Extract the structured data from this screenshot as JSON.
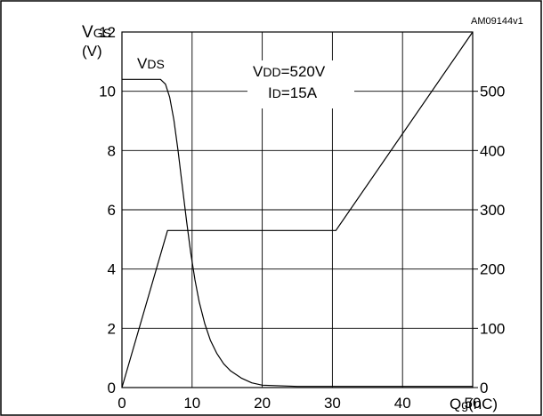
{
  "chart_data": {
    "type": "line",
    "reference": "AM09144v1",
    "y_left_label": {
      "main": "V",
      "sub": "GS",
      "unit": "(V)"
    },
    "y_right_label": {
      "main": "V",
      "sub": "DS",
      "unit": ""
    },
    "x_label": {
      "main": "Q",
      "sub": "g",
      "unit": "(nC)"
    },
    "conditions": {
      "line1": {
        "main": "V",
        "sub": "DD",
        "value": "=520V"
      },
      "line2": {
        "main": "I",
        "sub": "D",
        "value": "=15A"
      }
    },
    "xlim": [
      0,
      50
    ],
    "ylim_left": [
      0,
      12
    ],
    "ylim_right": [
      0,
      600
    ],
    "x_ticks": [
      0,
      10,
      20,
      30,
      40,
      50
    ],
    "y_left_ticks": [
      0,
      2,
      4,
      6,
      8,
      10,
      12
    ],
    "y_right_ticks": [
      0,
      100,
      200,
      300,
      400,
      500
    ],
    "grid": true,
    "series": [
      {
        "axis": "left",
        "x": [
          0,
          6.5,
          30.5,
          50
        ],
        "y": [
          0,
          5.3,
          5.3,
          12
        ]
      },
      {
        "name": "VDS",
        "axis": "right",
        "x": [
          0,
          5.5,
          6.2,
          6.8,
          7.4,
          8.0,
          8.6,
          9.2,
          9.8,
          10.4,
          11.0,
          11.8,
          12.6,
          13.5,
          14.5,
          15.5,
          17.0,
          18.5,
          20,
          25,
          30,
          40,
          50
        ],
        "y": [
          520,
          520,
          512,
          490,
          452,
          400,
          340,
          282,
          228,
          182,
          145,
          108,
          80,
          58,
          40,
          28,
          16,
          8,
          4,
          2,
          2,
          2,
          2
        ]
      }
    ]
  }
}
